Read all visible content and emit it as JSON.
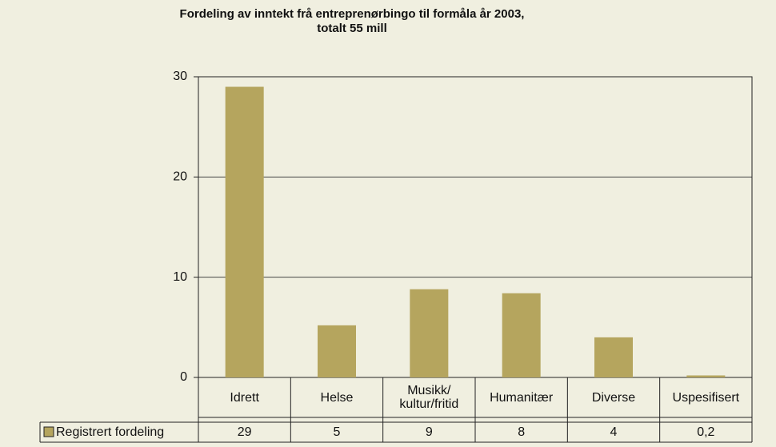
{
  "chart_data": {
    "type": "bar",
    "title": [
      "Fordeling av inntekt frå entreprenørbingo til formåla år 2003,",
      "totalt 55 mill"
    ],
    "categories": [
      "Idrett",
      "Helse",
      "Musikk/ kultur/fritid",
      "Humanitær",
      "Diverse",
      "Uspesifisert"
    ],
    "series": [
      {
        "name": "Registrert fordeling",
        "color": "#b5a55e",
        "values": [
          29,
          5.2,
          8.8,
          8.4,
          4,
          0.2
        ],
        "value_labels": [
          "29",
          "5",
          "9",
          "8",
          "4",
          "0,2"
        ]
      }
    ],
    "ylim": [
      0,
      30
    ],
    "yticks": [
      0,
      10,
      20,
      30
    ],
    "grid": true
  }
}
